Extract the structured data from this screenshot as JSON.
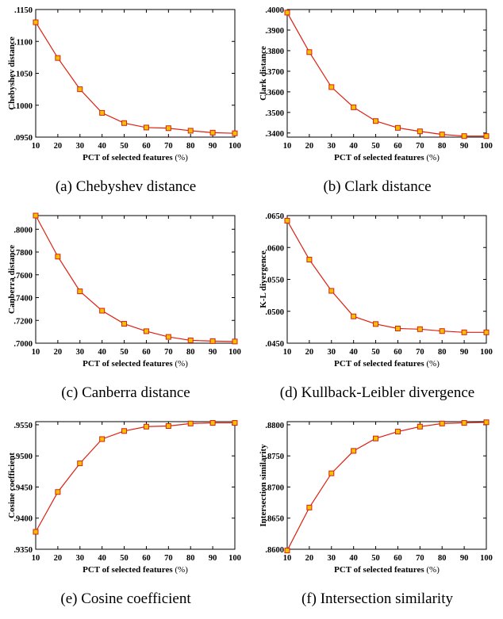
{
  "chart_data": [
    {
      "type": "line",
      "caption": "(a) Chebyshev distance",
      "xlabel": "PCT of selected features",
      "xunit": "(%)",
      "ylabel": "Chebyshev distance",
      "x": [
        10,
        20,
        30,
        40,
        50,
        60,
        70,
        80,
        90,
        100
      ],
      "xticks": [
        "10",
        "20",
        "30",
        "40",
        "50",
        "60",
        "70",
        "80",
        "90",
        "100"
      ],
      "xlim": [
        10,
        100
      ],
      "ylim": [
        0.095,
        0.115
      ],
      "yticks": [
        0.095,
        0.1,
        0.105,
        0.11,
        0.115
      ],
      "ytick_labels": [
        ".0950",
        ".1000",
        ".1050",
        ".1100",
        ".1150"
      ],
      "series": [
        {
          "values": [
            0.113,
            0.1074,
            0.1025,
            0.0988,
            0.0972,
            0.0965,
            0.0964,
            0.096,
            0.0957,
            0.0956
          ]
        }
      ]
    },
    {
      "type": "line",
      "caption": "(b) Clark distance",
      "xlabel": "PCT of selected features",
      "xunit": "(%)",
      "ylabel": "Clark distance",
      "x": [
        10,
        20,
        30,
        40,
        50,
        60,
        70,
        80,
        90,
        100
      ],
      "xticks": [
        "10",
        "20",
        "30",
        "40",
        "50",
        "60",
        "70",
        "80",
        "90",
        "100"
      ],
      "xlim": [
        10,
        100
      ],
      "ylim": [
        0.338,
        0.4
      ],
      "yticks": [
        0.34,
        0.35,
        0.36,
        0.37,
        0.38,
        0.39,
        0.4
      ],
      "ytick_labels": [
        ".3400",
        ".3500",
        ".3600",
        ".3700",
        ".3800",
        ".3900",
        ".4000"
      ],
      "series": [
        {
          "values": [
            0.3985,
            0.3793,
            0.3623,
            0.3525,
            0.3458,
            0.3425,
            0.3408,
            0.3393,
            0.3385,
            0.3385
          ]
        }
      ]
    },
    {
      "type": "line",
      "caption": "(c) Canberra distance",
      "xlabel": "PCT of selected features",
      "xunit": "(%)",
      "ylabel": "Canberra distance",
      "x": [
        10,
        20,
        30,
        40,
        50,
        60,
        70,
        80,
        90,
        100
      ],
      "xticks": [
        "10",
        "20",
        "30",
        "40",
        "50",
        "60",
        "70",
        "80",
        "90",
        "100"
      ],
      "xlim": [
        10,
        100
      ],
      "ylim": [
        0.7,
        0.812
      ],
      "yticks": [
        0.7,
        0.72,
        0.74,
        0.76,
        0.78,
        0.8
      ],
      "ytick_labels": [
        ".7000",
        ".7200",
        ".7400",
        ".7600",
        ".7800",
        ".8000"
      ],
      "series": [
        {
          "values": [
            0.812,
            0.776,
            0.7455,
            0.7285,
            0.717,
            0.7105,
            0.7055,
            0.7025,
            0.7018,
            0.7015
          ]
        }
      ]
    },
    {
      "type": "line",
      "caption": "(d) Kullback-Leibler divergence",
      "xlabel": "PCT of selected features",
      "xunit": "(%)",
      "ylabel": "K-L divergence",
      "x": [
        10,
        20,
        30,
        40,
        50,
        60,
        70,
        80,
        90,
        100
      ],
      "xticks": [
        "10",
        "20",
        "30",
        "40",
        "50",
        "60",
        "70",
        "80",
        "90",
        "100"
      ],
      "xlim": [
        10,
        100
      ],
      "ylim": [
        0.045,
        0.065
      ],
      "yticks": [
        0.045,
        0.05,
        0.055,
        0.06,
        0.065
      ],
      "ytick_labels": [
        ".0450",
        ".0500",
        ".0550",
        ".0600",
        ".0650"
      ],
      "series": [
        {
          "values": [
            0.0642,
            0.0581,
            0.0532,
            0.0492,
            0.048,
            0.0473,
            0.0472,
            0.0469,
            0.0467,
            0.0467
          ]
        }
      ]
    },
    {
      "type": "line",
      "caption": "(e) Cosine coefficient",
      "xlabel": "PCT of selected features",
      "xunit": "(%)",
      "ylabel": "Cosine coefficient",
      "x": [
        10,
        20,
        30,
        40,
        50,
        60,
        70,
        80,
        90,
        100
      ],
      "xticks": [
        "10",
        "20",
        "30",
        "40",
        "50",
        "60",
        "70",
        "80",
        "90",
        "100"
      ],
      "xlim": [
        10,
        100
      ],
      "ylim": [
        0.935,
        0.9555
      ],
      "yticks": [
        0.935,
        0.94,
        0.945,
        0.95,
        0.955
      ],
      "ytick_labels": [
        ".9350",
        ".9400",
        ".9450",
        ".9500",
        ".9550"
      ],
      "series": [
        {
          "values": [
            0.9378,
            0.9442,
            0.9488,
            0.9527,
            0.954,
            0.9547,
            0.9548,
            0.9552,
            0.9553,
            0.9553
          ]
        }
      ]
    },
    {
      "type": "line",
      "caption": "(f) Intersection similarity",
      "xlabel": "PCT of selected features",
      "xunit": "(%)",
      "ylabel": "Intersection similarity",
      "x": [
        10,
        20,
        30,
        40,
        50,
        60,
        70,
        80,
        90,
        100
      ],
      "xticks": [
        "10",
        "20",
        "30",
        "40",
        "50",
        "60",
        "70",
        "80",
        "90",
        "100"
      ],
      "xlim": [
        10,
        100
      ],
      "ylim": [
        0.86,
        0.8805
      ],
      "yticks": [
        0.86,
        0.865,
        0.87,
        0.875,
        0.88
      ],
      "ytick_labels": [
        ".8600",
        ".8650",
        ".8700",
        ".8750",
        ".8800"
      ],
      "series": [
        {
          "values": [
            0.8598,
            0.8667,
            0.8722,
            0.8758,
            0.8778,
            0.8789,
            0.8797,
            0.8802,
            0.8803,
            0.8804
          ]
        }
      ]
    }
  ],
  "style": {
    "line_color": "#dd1f10",
    "marker_fill": "#f2c200",
    "marker_stroke": "#dd1f10",
    "axis_color": "#000000"
  }
}
